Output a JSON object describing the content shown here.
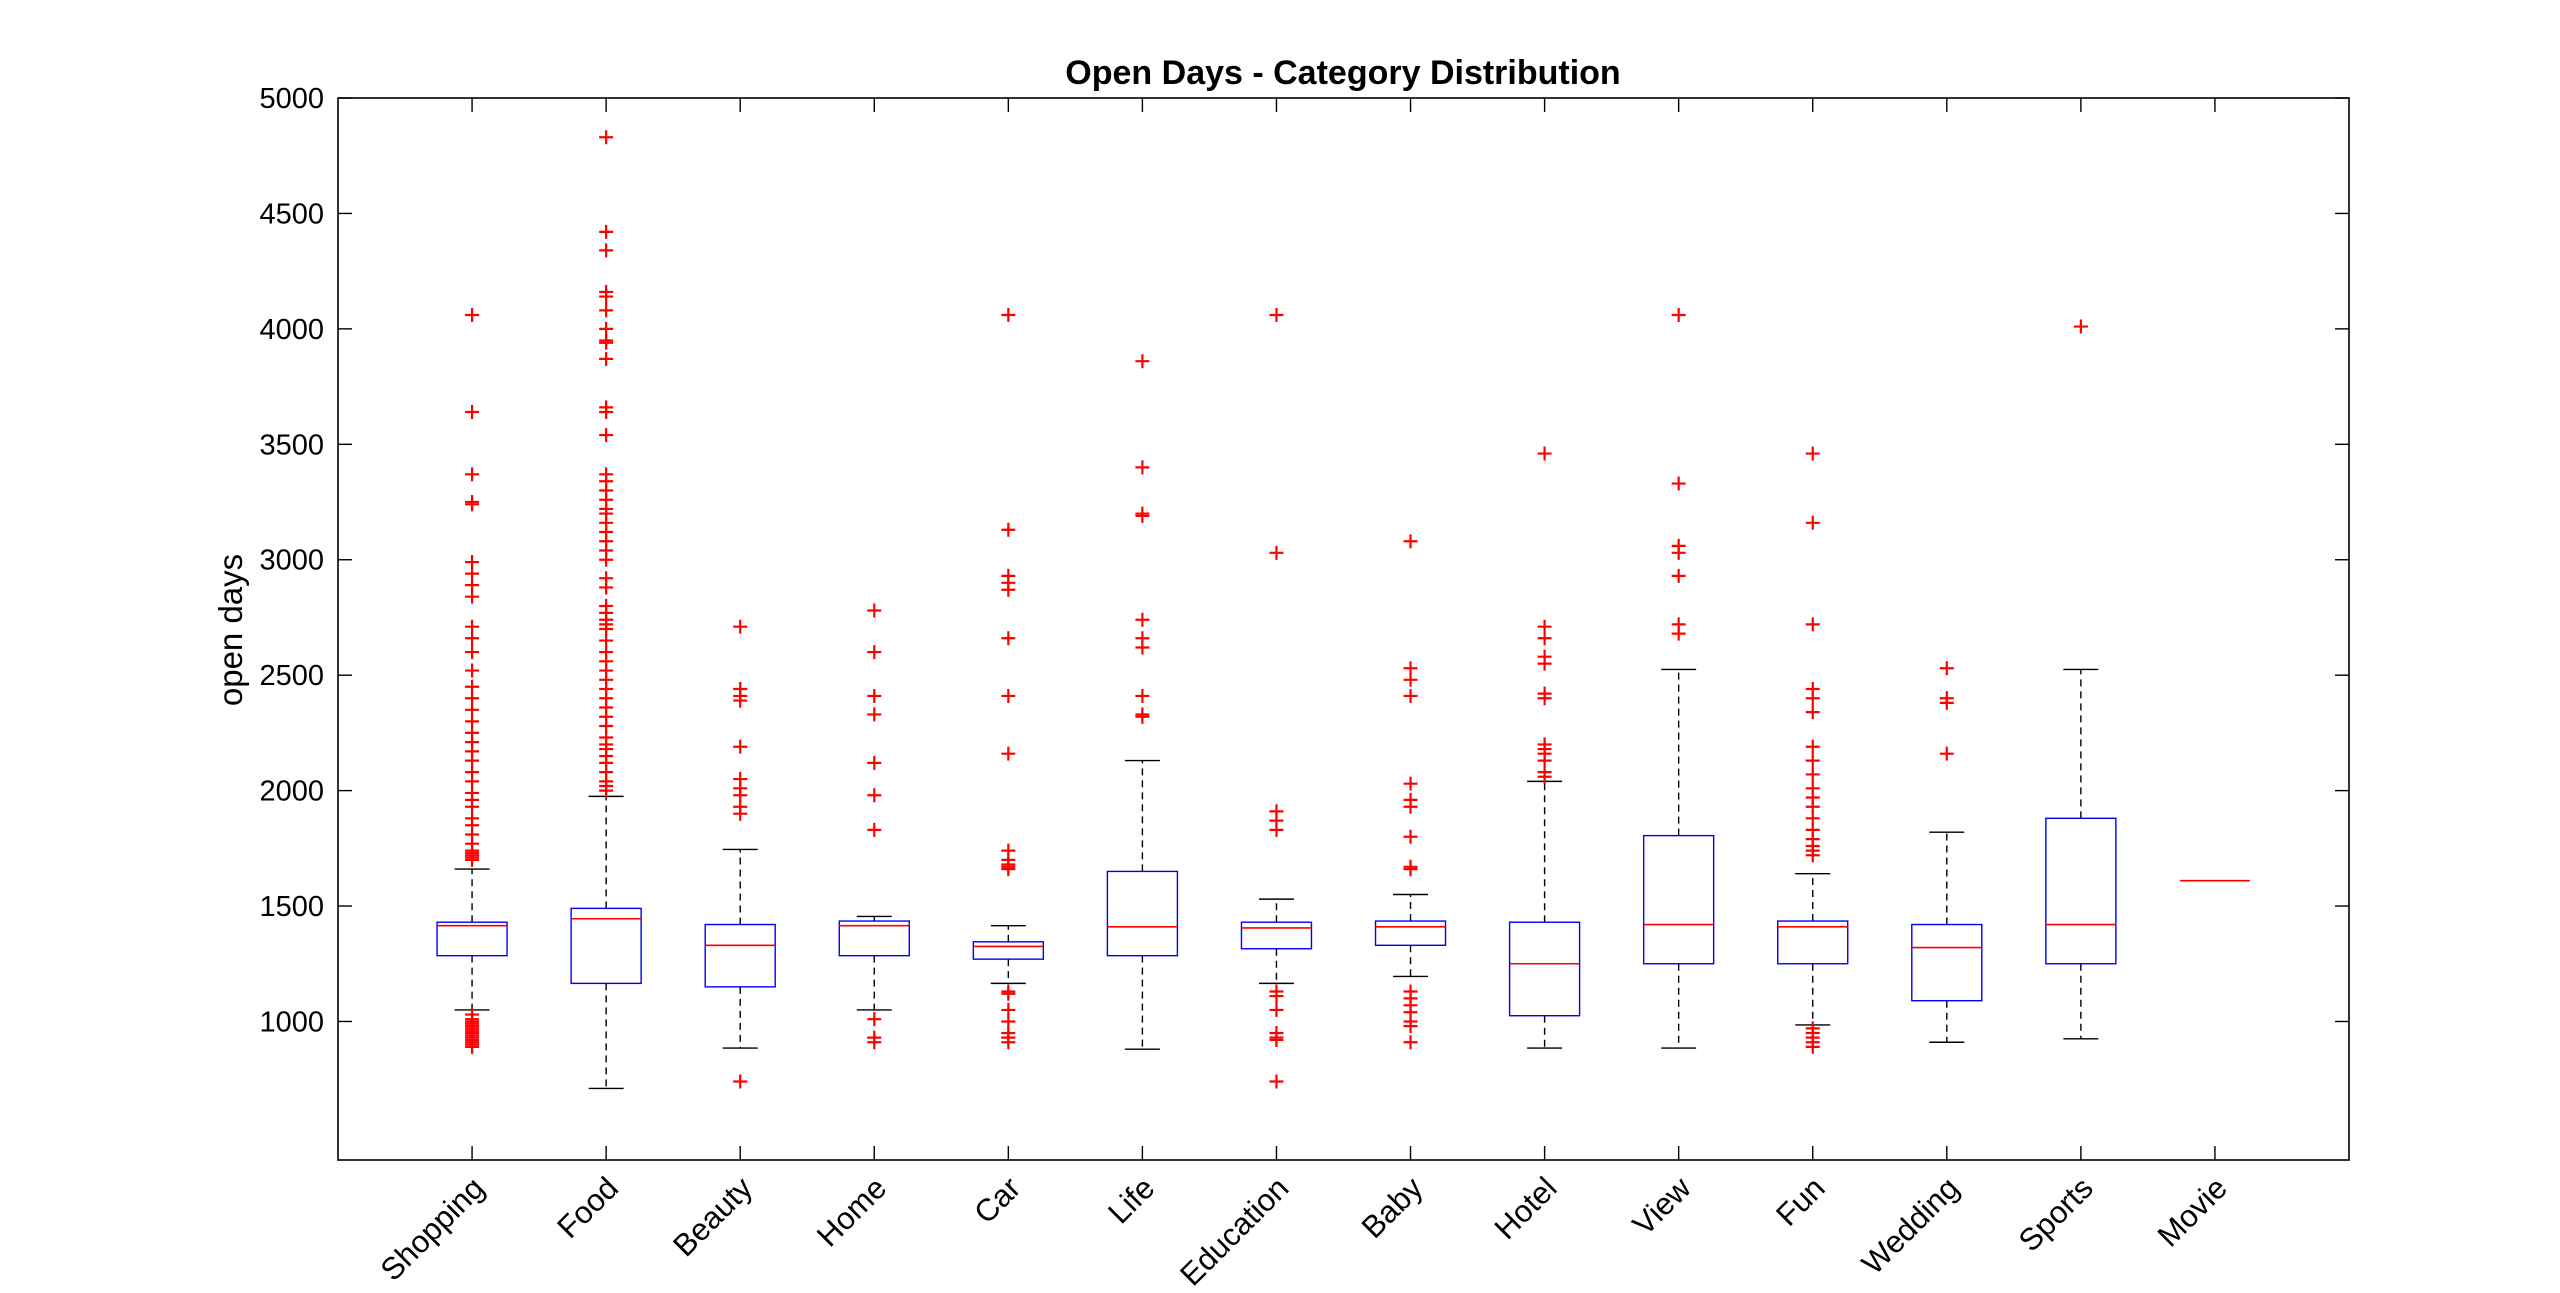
{
  "chart_data": {
    "type": "boxplot",
    "title": "Open Days - Category Distribution",
    "xlabel": "",
    "ylabel": "open days",
    "ylim": [
      400,
      5000
    ],
    "yticks": [
      1000,
      1500,
      2000,
      2500,
      3000,
      3500,
      4000,
      4500,
      5000
    ],
    "grid": false,
    "colors": {
      "box": "#0000ff",
      "median": "#ff0000",
      "whisker": "#000000",
      "outlier": "#ff0000"
    },
    "categories": [
      "Shopping",
      "Food",
      "Beauty",
      "Home",
      "Car",
      "Life",
      "Education",
      "Baby",
      "Hotel",
      "View",
      "Fun",
      "Wedding",
      "Sports",
      "Movie"
    ],
    "boxes": [
      {
        "category": "Shopping",
        "whisker_low": 1050,
        "q1": 1285,
        "median": 1415,
        "q3": 1430,
        "whisker_high": 1660,
        "outliers": [
          4060,
          3640,
          3370,
          3250,
          3240,
          2990,
          2940,
          2890,
          2840,
          2710,
          2660,
          2600,
          2520,
          2450,
          2400,
          2350,
          2300,
          2250,
          2210,
          2170,
          2130,
          2080,
          2040,
          1990,
          1960,
          1930,
          1880,
          1850,
          1810,
          1770,
          1740,
          1730,
          1720,
          1710,
          1700,
          1030,
          1010,
          1000,
          990,
          980,
          970,
          960,
          950,
          940,
          930,
          920,
          910,
          900,
          890
        ]
      },
      {
        "category": "Food",
        "whisker_low": 710,
        "q1": 1165,
        "median": 1445,
        "q3": 1490,
        "whisker_high": 1975,
        "outliers": [
          4830,
          4420,
          4340,
          4160,
          4140,
          4080,
          4000,
          3950,
          3940,
          3870,
          3660,
          3640,
          3540,
          3370,
          3340,
          3300,
          3260,
          3220,
          3200,
          3160,
          3120,
          3080,
          3040,
          3000,
          2920,
          2880,
          2800,
          2770,
          2740,
          2720,
          2700,
          2650,
          2600,
          2560,
          2520,
          2480,
          2440,
          2400,
          2360,
          2320,
          2280,
          2230,
          2200,
          2180,
          2150,
          2120,
          2080,
          2040,
          2020,
          2000
        ]
      },
      {
        "category": "Beauty",
        "whisker_low": 885,
        "q1": 1150,
        "median": 1330,
        "q3": 1420,
        "whisker_high": 1745,
        "outliers": [
          2710,
          2440,
          2410,
          2390,
          2190,
          2050,
          2010,
          1980,
          1930,
          1900,
          740
        ]
      },
      {
        "category": "Home",
        "whisker_low": 1050,
        "q1": 1285,
        "median": 1415,
        "q3": 1435,
        "whisker_high": 1455,
        "outliers": [
          2780,
          2600,
          2410,
          2330,
          2120,
          1980,
          1830,
          1010,
          930,
          910
        ]
      },
      {
        "category": "Car",
        "whisker_low": 1165,
        "q1": 1270,
        "median": 1325,
        "q3": 1345,
        "whisker_high": 1415,
        "outliers": [
          4060,
          3130,
          2930,
          2900,
          2870,
          2660,
          2410,
          2160,
          1740,
          1700,
          1680,
          1670,
          1660,
          1130,
          1120,
          1050,
          1000,
          950,
          930,
          910
        ]
      },
      {
        "category": "Life",
        "whisker_low": 880,
        "q1": 1285,
        "median": 1410,
        "q3": 1650,
        "whisker_high": 2130,
        "outliers": [
          3860,
          3400,
          3200,
          3190,
          2740,
          2660,
          2620,
          2410,
          2330,
          2320
        ]
      },
      {
        "category": "Education",
        "whisker_low": 1165,
        "q1": 1315,
        "median": 1405,
        "q3": 1430,
        "whisker_high": 1530,
        "outliers": [
          4060,
          3030,
          1910,
          1870,
          1830,
          1130,
          1110,
          1050,
          950,
          930,
          920,
          740
        ]
      },
      {
        "category": "Baby",
        "whisker_low": 1195,
        "q1": 1330,
        "median": 1410,
        "q3": 1435,
        "whisker_high": 1550,
        "outliers": [
          3080,
          2530,
          2480,
          2410,
          2030,
          1960,
          1930,
          1800,
          1670,
          1660,
          1130,
          1100,
          1070,
          1040,
          1000,
          980,
          910
        ]
      },
      {
        "category": "Hotel",
        "whisker_low": 885,
        "q1": 1025,
        "median": 1250,
        "q3": 1430,
        "whisker_high": 2040,
        "outliers": [
          3460,
          2710,
          2660,
          2580,
          2550,
          2420,
          2400,
          2200,
          2180,
          2160,
          2130,
          2080,
          2060
        ]
      },
      {
        "category": "View",
        "whisker_low": 885,
        "q1": 1250,
        "median": 1420,
        "q3": 1805,
        "whisker_high": 2525,
        "outliers": [
          4060,
          3330,
          3060,
          3030,
          2930,
          2720,
          2680
        ]
      },
      {
        "category": "Fun",
        "whisker_low": 985,
        "q1": 1250,
        "median": 1410,
        "q3": 1435,
        "whisker_high": 1640,
        "outliers": [
          3460,
          3160,
          2720,
          2440,
          2400,
          2340,
          2190,
          2130,
          2070,
          2010,
          1970,
          1930,
          1880,
          1830,
          1790,
          1760,
          1740,
          1720,
          970,
          950,
          930,
          910,
          890
        ]
      },
      {
        "category": "Wedding",
        "whisker_low": 910,
        "q1": 1090,
        "median": 1320,
        "q3": 1420,
        "whisker_high": 1820,
        "outliers": [
          2530,
          2400,
          2380,
          2160
        ]
      },
      {
        "category": "Sports",
        "whisker_low": 925,
        "q1": 1250,
        "median": 1420,
        "q3": 1880,
        "whisker_high": 2525,
        "outliers": [
          4010
        ]
      },
      {
        "category": "Movie",
        "whisker_low": 1610,
        "q1": 1610,
        "median": 1610,
        "q3": 1610,
        "whisker_high": 1610,
        "outliers": []
      }
    ]
  }
}
